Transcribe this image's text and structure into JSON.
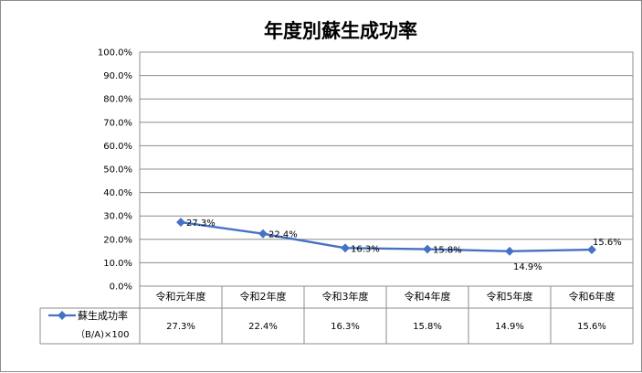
{
  "chart_data": {
    "type": "line",
    "title": "年度別蘇生成功率",
    "categories": [
      "令和元年度",
      "令和2年度",
      "令和3年度",
      "令和4年度",
      "令和5年度",
      "令和6年度"
    ],
    "series": [
      {
        "name": "蘇生成功率",
        "name_sub": "（B/A)×100",
        "values": [
          27.3,
          22.4,
          16.3,
          15.8,
          14.9,
          15.6
        ],
        "value_labels": [
          "27.3%",
          "22.4%",
          "16.3%",
          "15.8%",
          "14.9%",
          "15.6%"
        ],
        "color": "#4472c4"
      }
    ],
    "y_ticks": [
      "0.0%",
      "10.0%",
      "20.0%",
      "30.0%",
      "40.0%",
      "50.0%",
      "60.0%",
      "70.0%",
      "80.0%",
      "90.0%",
      "100.0%"
    ],
    "ylim": [
      0,
      100
    ],
    "grid": true,
    "data_table": true,
    "legend_placement": "data-table-left"
  }
}
